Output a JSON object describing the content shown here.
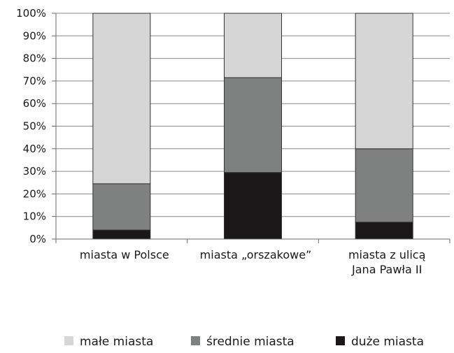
{
  "chart_data": {
    "type": "bar",
    "stacked": true,
    "percent": true,
    "categories": [
      [
        "miasta w Polsce"
      ],
      [
        "miasta „orszakowe”"
      ],
      [
        "miasta z ulicą",
        "Jana Pawła II"
      ]
    ],
    "series": [
      {
        "name": "duże miasta",
        "color": "#1a1718",
        "values": [
          4,
          29.5,
          7.5
        ]
      },
      {
        "name": "średnie miasta",
        "color": "#7f8180",
        "values": [
          20.5,
          42,
          32.5
        ]
      },
      {
        "name": "małe miasta",
        "color": "#d6d6d6",
        "values": [
          75.5,
          28.5,
          60
        ]
      }
    ],
    "legend_order": [
      "małe miasta",
      "średnie miasta",
      "duże miasta"
    ],
    "yticks": [
      "0%",
      "10%",
      "20%",
      "30%",
      "40%",
      "50%",
      "60%",
      "70%",
      "80%",
      "90%",
      "100%"
    ],
    "ylim": [
      0,
      100
    ],
    "grid": true,
    "legend_position": "bottom",
    "title": "",
    "xlabel": "",
    "ylabel": ""
  }
}
